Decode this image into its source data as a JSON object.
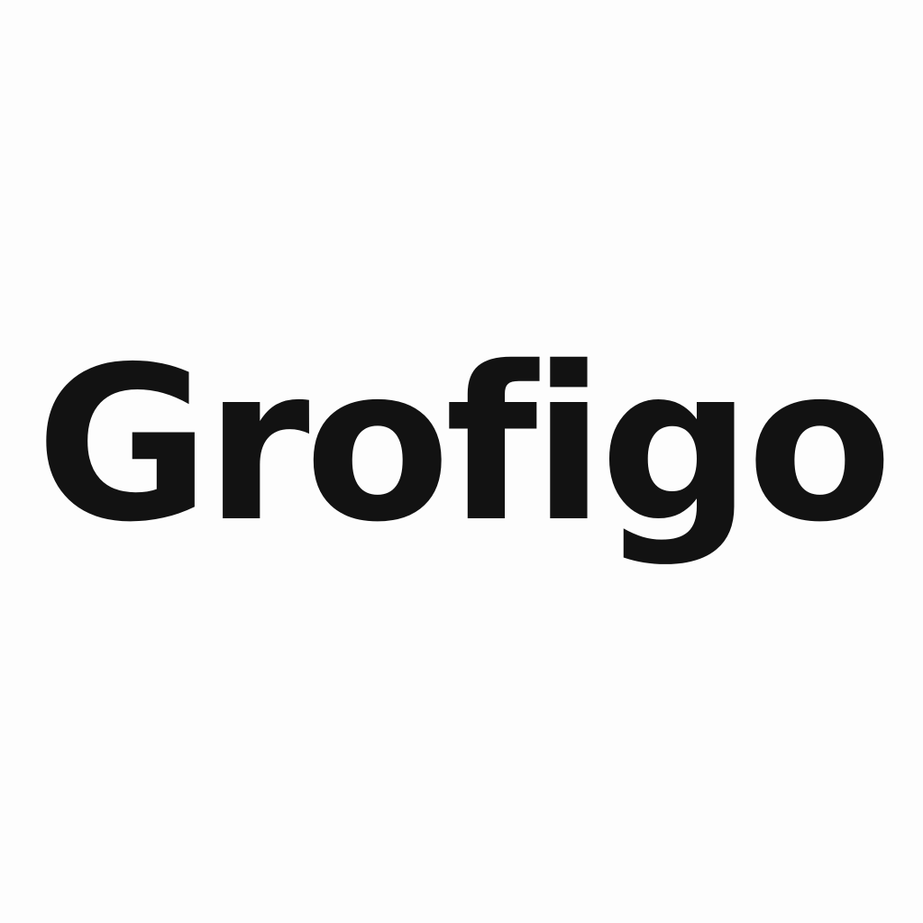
{
  "wordmark": {
    "text": "Grofigo",
    "color": "#121212"
  },
  "background": {
    "color": "#fdfdfd"
  }
}
